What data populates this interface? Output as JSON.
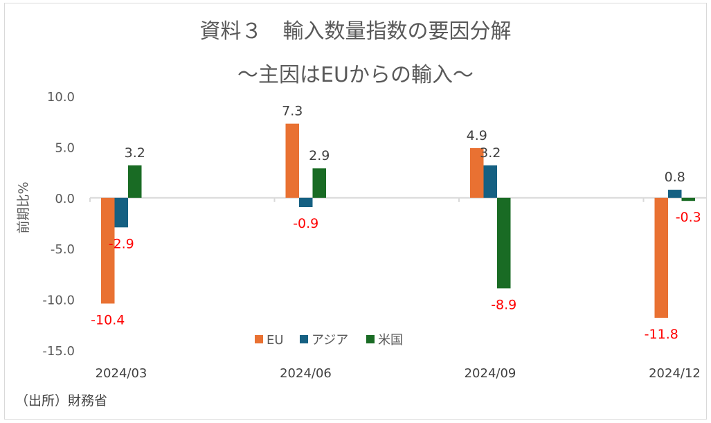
{
  "title": "資料３　輸入数量指数の要因分解",
  "subtitle": "～主因はEUからの輸入～",
  "source": "（出所）財務省",
  "chart_data": {
    "type": "bar",
    "categories": [
      "2024/03",
      "2024/06",
      "2024/09",
      "2024/12"
    ],
    "series": [
      {
        "name": "EU",
        "color": "#E97132",
        "values": [
          -10.4,
          7.3,
          4.9,
          -11.8
        ]
      },
      {
        "name": "アジア",
        "color": "#156082",
        "values": [
          -2.9,
          -0.9,
          3.2,
          0.8
        ]
      },
      {
        "name": "米国",
        "color": "#196B24",
        "values": [
          3.2,
          2.9,
          -8.9,
          -0.3
        ]
      }
    ],
    "ylabel": "前期比%",
    "ylim": [
      -15,
      10
    ],
    "yticks": [
      "10.0",
      "5.0",
      "0.0",
      "-5.0",
      "-10.0",
      "-15.0"
    ],
    "ytick_values": [
      10,
      5,
      0,
      -5,
      -10,
      -15
    ],
    "negative_label_color": "#FF0000",
    "positive_label_color": "#404040",
    "legend": "bottom-center"
  }
}
